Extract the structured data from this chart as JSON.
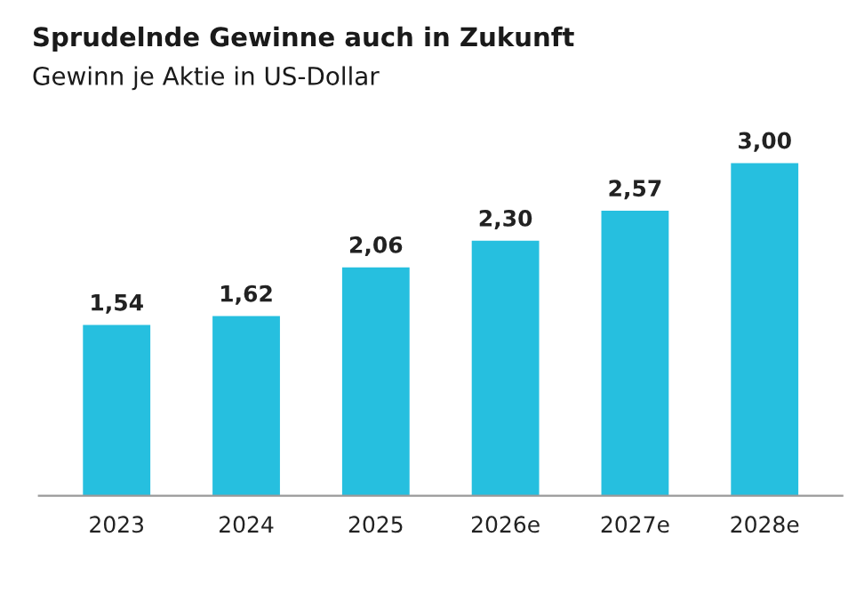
{
  "chart_data": {
    "type": "bar",
    "title": "Sprudelnde Gewinne auch in Zukunft",
    "subtitle": "Gewinn je Aktie in US-Dollar",
    "categories": [
      "2023",
      "2024",
      "2025",
      "2026e",
      "2027e",
      "2028e"
    ],
    "values": [
      1.54,
      1.62,
      2.06,
      2.3,
      2.57,
      3.0
    ],
    "value_labels": [
      "1,54",
      "1,62",
      "2,06",
      "2,30",
      "2,57",
      "3,00"
    ],
    "color": "#26bfdf",
    "grid": false,
    "legend": false
  }
}
